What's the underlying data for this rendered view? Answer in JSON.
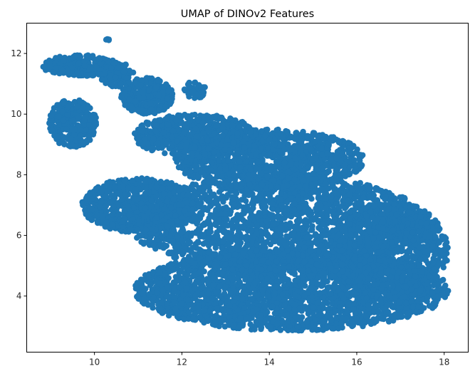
{
  "chart_data": {
    "type": "scatter",
    "title": "UMAP of DINOv2 Features",
    "xlabel": "",
    "ylabel": "",
    "xlim": [
      8.45,
      18.55
    ],
    "ylim": [
      2.15,
      13.0
    ],
    "x_ticks": [
      10,
      12,
      14,
      16,
      18
    ],
    "x_tick_labels": [
      "10",
      "12",
      "14",
      "16",
      "18"
    ],
    "y_ticks": [
      4,
      6,
      8,
      10,
      12
    ],
    "y_tick_labels": [
      "4",
      "6",
      "8",
      "10",
      "12"
    ],
    "grid": false,
    "legend": "none",
    "color": "#1f77b4",
    "series": [
      {
        "regions": [
          {
            "cx": 14.5,
            "cy": 4.2,
            "rx": 3.6,
            "ry": 1.35,
            "weight": 30
          },
          {
            "cx": 14.2,
            "cy": 6.4,
            "rx": 3.4,
            "ry": 1.6,
            "weight": 28
          },
          {
            "cx": 14.0,
            "cy": 8.5,
            "rx": 2.2,
            "ry": 1.0,
            "weight": 14
          },
          {
            "cx": 16.8,
            "cy": 5.5,
            "rx": 1.3,
            "ry": 1.6,
            "weight": 10
          },
          {
            "cx": 11.0,
            "cy": 7.0,
            "rx": 1.3,
            "ry": 0.9,
            "weight": 8
          },
          {
            "cx": 12.3,
            "cy": 9.3,
            "rx": 1.4,
            "ry": 0.7,
            "weight": 7
          },
          {
            "cx": 11.2,
            "cy": 10.6,
            "rx": 0.6,
            "ry": 0.6,
            "weight": 4
          },
          {
            "cx": 9.5,
            "cy": 9.7,
            "rx": 0.55,
            "ry": 0.8,
            "weight": 4
          },
          {
            "cx": 9.7,
            "cy": 11.6,
            "rx": 0.9,
            "ry": 0.35,
            "weight": 3
          },
          {
            "cx": 10.5,
            "cy": 11.3,
            "rx": 0.4,
            "ry": 0.4,
            "weight": 1.5
          },
          {
            "cx": 12.3,
            "cy": 10.8,
            "rx": 0.25,
            "ry": 0.3,
            "weight": 0.6
          },
          {
            "cx": 10.3,
            "cy": 12.45,
            "rx": 0.04,
            "ry": 0.04,
            "weight": 0.05
          }
        ],
        "n_points": 9000
      }
    ]
  }
}
